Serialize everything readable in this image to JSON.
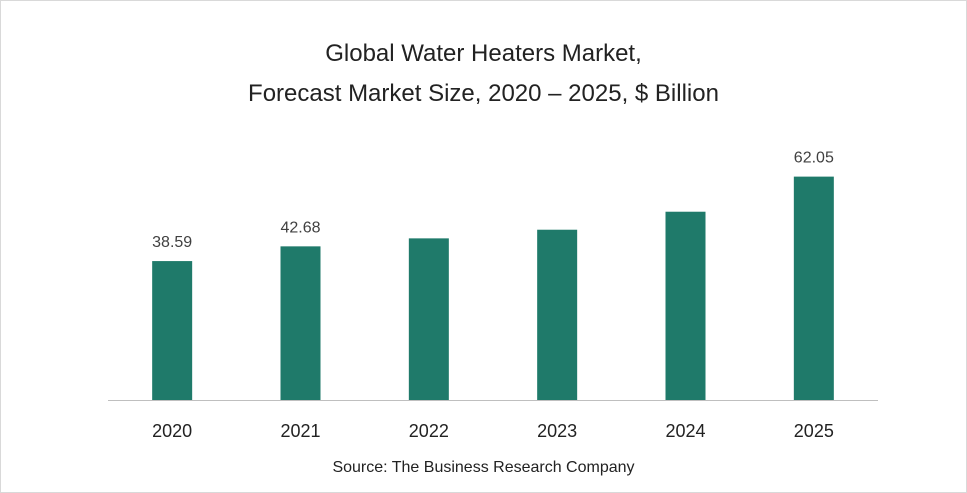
{
  "chart_data": {
    "type": "bar",
    "title": "Global Water Heaters Market,",
    "subtitle": "Forecast Market Size, 2020 – 2025, $ Billion",
    "categories": [
      "2020",
      "2021",
      "2022",
      "2023",
      "2024",
      "2025"
    ],
    "values": [
      38.59,
      42.68,
      44.9,
      47.3,
      52.3,
      62.05
    ],
    "data_labels": [
      "38.59",
      "42.68",
      "",
      "",
      "",
      "62.05"
    ],
    "xlabel": "",
    "ylabel": "",
    "ylim": [
      0,
      70
    ],
    "grid": false,
    "legend": "none",
    "bar_color": "#1f7a6a",
    "axis_color": "#bfbfbf",
    "text_color": "#404040"
  },
  "source": "Source: The Business Research Company"
}
